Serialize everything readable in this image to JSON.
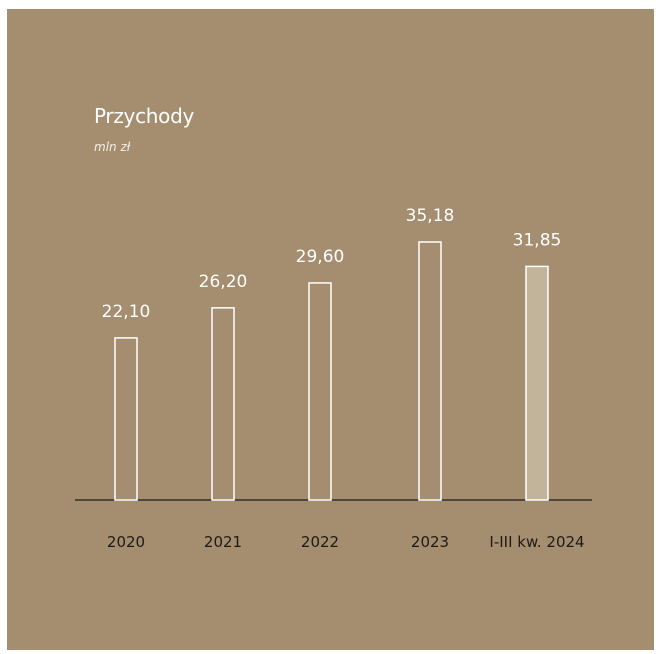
{
  "chart_data": {
    "type": "bar",
    "title": "Przychody",
    "unit": "mln zł",
    "categories": [
      "2020",
      "2021",
      "2022",
      "2023",
      "I-III kw. 2024"
    ],
    "values": [
      22.1,
      26.2,
      29.6,
      35.18,
      31.85
    ],
    "value_labels": [
      "22,10",
      "26,20",
      "29,60",
      "35,18",
      "31,85"
    ],
    "highlighted_index": 4,
    "ylim": [
      0,
      35.18
    ],
    "grid": false,
    "colors": {
      "background": "#a48e6f",
      "bar_outline": "#ffffff",
      "highlight_fill": "#c2b49b",
      "value_text": "#ffffff",
      "axis_text": "#1f1a14"
    }
  }
}
